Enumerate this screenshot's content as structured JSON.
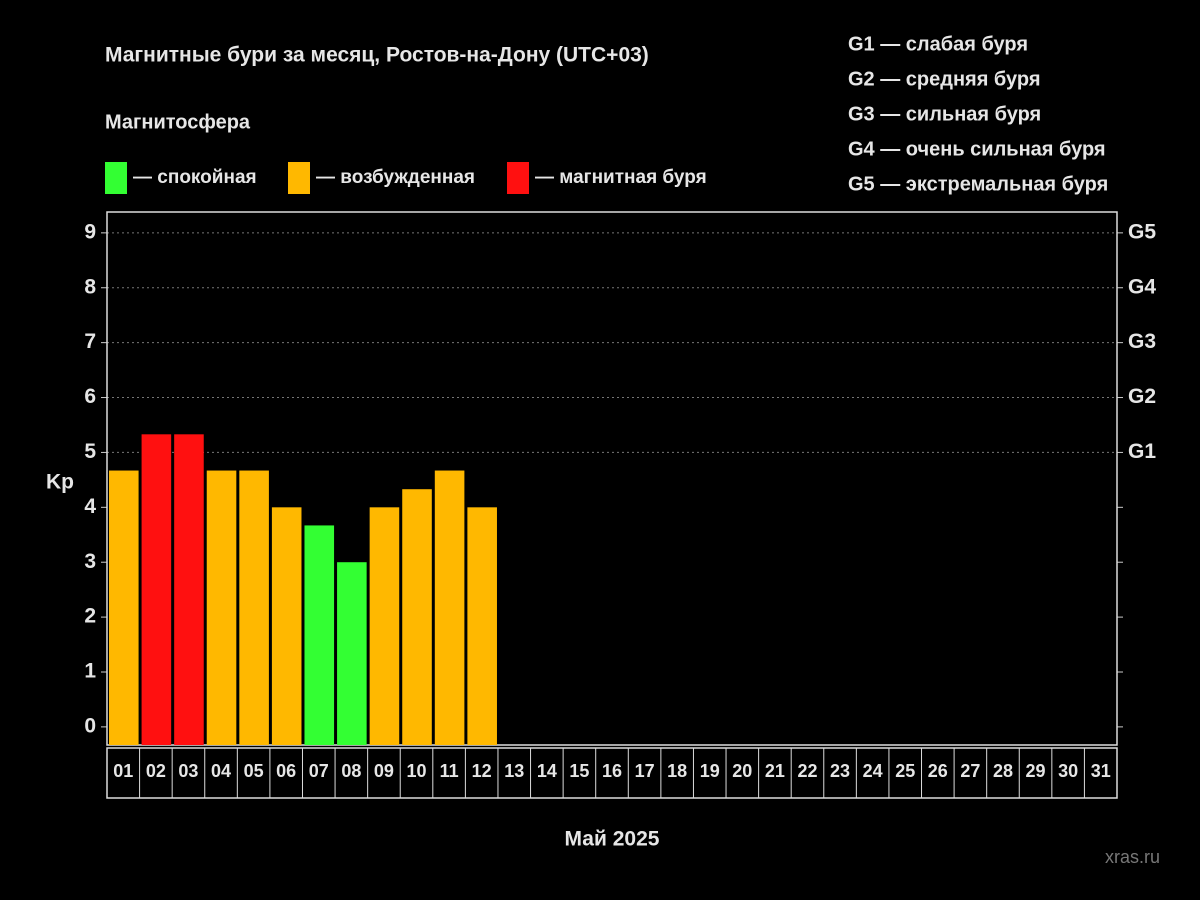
{
  "chart_data": {
    "type": "bar",
    "title": "Магнитные бури за месяц, Ростов-на-Дону (UTC+03)",
    "legend": {
      "title": "Магнитосфера",
      "items": [
        {
          "color": "#33ff33",
          "label": "— спокойная"
        },
        {
          "color": "#ffb800",
          "label": "— возбужденная"
        },
        {
          "color": "#ff1010",
          "label": "— магнитная буря"
        }
      ]
    },
    "storm_levels": [
      "G1 — слабая буря",
      "G2 — средняя буря",
      "G3 — сильная буря",
      "G4 — очень сильная буря",
      "G5 — экстремальная буря"
    ],
    "y_label": "Kp",
    "x_label": "Май 2025",
    "watermark": "xras.ru",
    "categories": [
      "01",
      "02",
      "03",
      "04",
      "05",
      "06",
      "07",
      "08",
      "09",
      "10",
      "11",
      "12",
      "13",
      "14",
      "15",
      "16",
      "17",
      "18",
      "19",
      "20",
      "21",
      "22",
      "23",
      "24",
      "25",
      "26",
      "27",
      "28",
      "29",
      "30",
      "31"
    ],
    "values": [
      4.67,
      5.33,
      5.33,
      4.67,
      4.67,
      4,
      3.67,
      3,
      4,
      4.33,
      4.67,
      4,
      null,
      null,
      null,
      null,
      null,
      null,
      null,
      null,
      null,
      null,
      null,
      null,
      null,
      null,
      null,
      null,
      null,
      null,
      null
    ],
    "colors": [
      "#ffb800",
      "#ff1010",
      "#ff1010",
      "#ffb800",
      "#ffb800",
      "#ffb800",
      "#33ff33",
      "#33ff33",
      "#ffb800",
      "#ffb800",
      "#ffb800",
      "#ffb800",
      null,
      null,
      null,
      null,
      null,
      null,
      null,
      null,
      null,
      null,
      null,
      null,
      null,
      null,
      null,
      null,
      null,
      null,
      null
    ],
    "ylim": [
      -0.33,
      9.38
    ],
    "yticks": [
      0,
      1,
      2,
      3,
      4,
      5,
      6,
      7,
      8,
      9
    ],
    "y2lim": [
      -0.33,
      9.38
    ],
    "y2ticks": [
      {
        "value": 5,
        "label": "G1"
      },
      {
        "value": 6,
        "label": "G2"
      },
      {
        "value": 7,
        "label": "G3"
      },
      {
        "value": 8,
        "label": "G4"
      },
      {
        "value": 9,
        "label": "G5"
      }
    ],
    "grid": true
  }
}
